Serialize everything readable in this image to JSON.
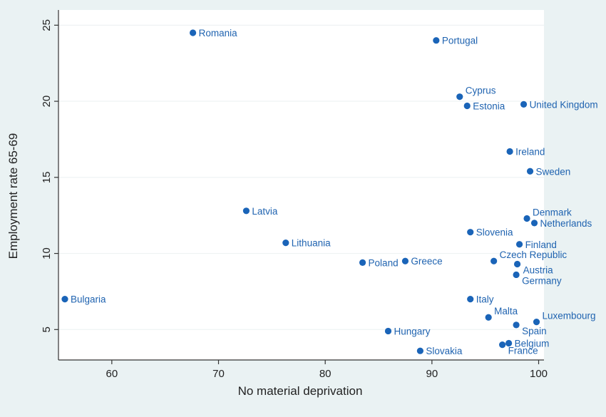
{
  "chart_data": {
    "type": "scatter",
    "title": "",
    "xlabel": "No material deprivation",
    "ylabel": "Employment rate 65-69",
    "xlim": [
      55,
      100.5
    ],
    "ylim": [
      3.0,
      26.0
    ],
    "xticks": [
      60,
      70,
      80,
      90,
      100
    ],
    "yticks": [
      5,
      10,
      15,
      20,
      25
    ],
    "grid": "horizontal",
    "colors": {
      "background": "#eaf2f3",
      "plot_area": "#ffffff",
      "marker": "#1a64b8",
      "label": "#1f63b0",
      "grid": "#eef2f3"
    },
    "points": [
      {
        "label": "Romania",
        "x": 67.6,
        "y": 24.5,
        "pos": "right"
      },
      {
        "label": "Portugal",
        "x": 90.4,
        "y": 24.0,
        "pos": "right"
      },
      {
        "label": "Cyprus",
        "x": 92.6,
        "y": 20.3,
        "pos": "above-right"
      },
      {
        "label": "Estonia",
        "x": 93.3,
        "y": 19.7,
        "pos": "right"
      },
      {
        "label": "United Kingdom",
        "x": 98.6,
        "y": 19.8,
        "pos": "right"
      },
      {
        "label": "Ireland",
        "x": 97.3,
        "y": 16.7,
        "pos": "right"
      },
      {
        "label": "Sweden",
        "x": 99.2,
        "y": 15.4,
        "pos": "right"
      },
      {
        "label": "Latvia",
        "x": 72.6,
        "y": 12.8,
        "pos": "right"
      },
      {
        "label": "Denmark",
        "x": 98.9,
        "y": 12.3,
        "pos": "above-right"
      },
      {
        "label": "Netherlands",
        "x": 99.6,
        "y": 12.0,
        "pos": "right"
      },
      {
        "label": "Slovenia",
        "x": 93.6,
        "y": 11.4,
        "pos": "right"
      },
      {
        "label": "Lithuania",
        "x": 76.3,
        "y": 10.7,
        "pos": "right"
      },
      {
        "label": "Finland",
        "x": 98.2,
        "y": 10.6,
        "pos": "right"
      },
      {
        "label": "Czech Republic",
        "x": 95.8,
        "y": 9.5,
        "pos": "above-right"
      },
      {
        "label": "Poland",
        "x": 83.5,
        "y": 9.4,
        "pos": "right"
      },
      {
        "label": "Greece",
        "x": 87.5,
        "y": 9.5,
        "pos": "right"
      },
      {
        "label": "Austria",
        "x": 98.0,
        "y": 9.3,
        "pos": "below-right"
      },
      {
        "label": "Germany",
        "x": 97.9,
        "y": 8.6,
        "pos": "below-right"
      },
      {
        "label": "Bulgaria",
        "x": 55.6,
        "y": 7.0,
        "pos": "right"
      },
      {
        "label": "Italy",
        "x": 93.6,
        "y": 7.0,
        "pos": "right"
      },
      {
        "label": "Malta",
        "x": 95.3,
        "y": 5.8,
        "pos": "above-right"
      },
      {
        "label": "Luxembourg",
        "x": 99.8,
        "y": 5.5,
        "pos": "above-right"
      },
      {
        "label": "Spain",
        "x": 97.9,
        "y": 5.3,
        "pos": "below-right"
      },
      {
        "label": "Hungary",
        "x": 85.9,
        "y": 4.9,
        "pos": "right"
      },
      {
        "label": "Belgium",
        "x": 97.2,
        "y": 4.1,
        "pos": "right"
      },
      {
        "label": "France",
        "x": 96.6,
        "y": 4.0,
        "pos": "below-right"
      },
      {
        "label": "Slovakia",
        "x": 88.9,
        "y": 3.6,
        "pos": "right"
      }
    ]
  }
}
